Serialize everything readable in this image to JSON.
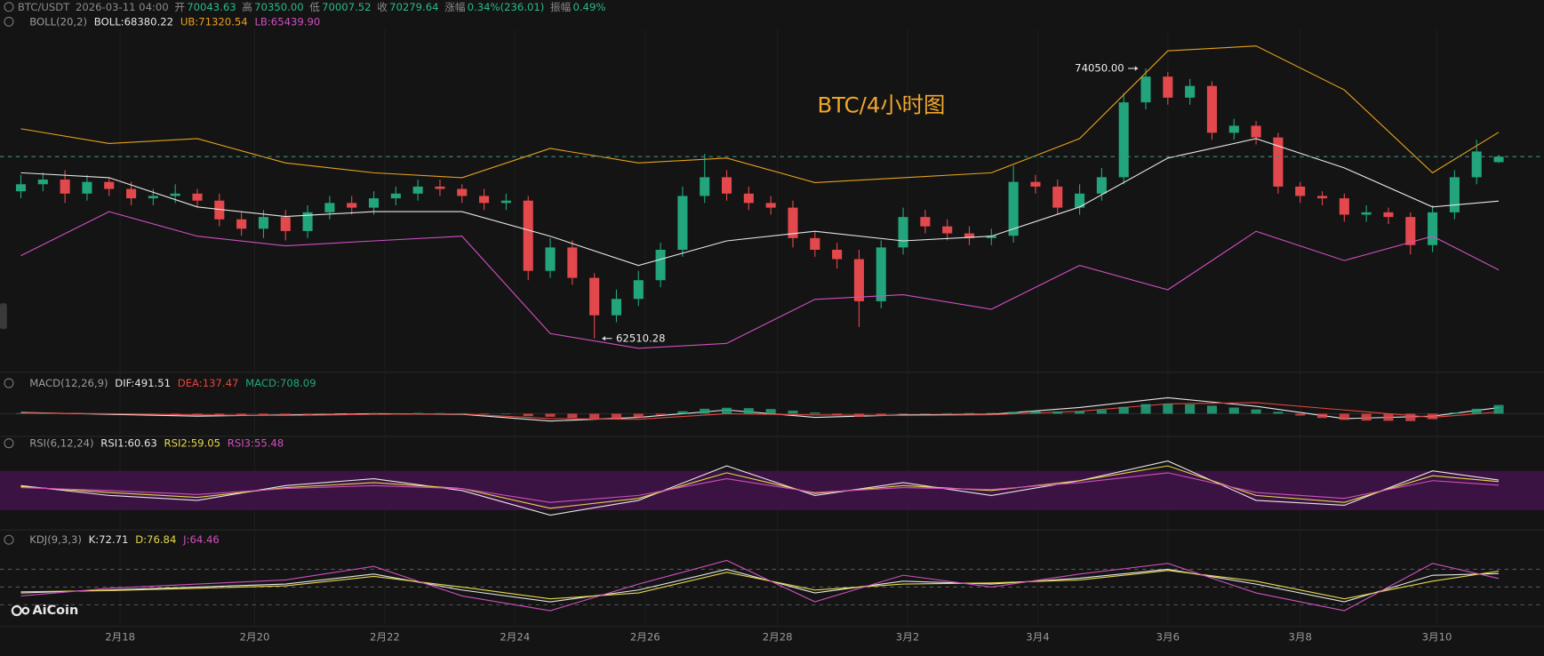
{
  "header": {
    "symbol": "BTC/USDT",
    "time": "2026-03-11 04:00",
    "fields": [
      {
        "label": "开",
        "value": "70043.63"
      },
      {
        "label": "高",
        "value": "70350.00"
      },
      {
        "label": "低",
        "value": "70007.52"
      },
      {
        "label": "收",
        "value": "70279.64"
      },
      {
        "label": "涨幅",
        "value": "0.34%(236.01)"
      },
      {
        "label": "振幅",
        "value": "0.49%"
      }
    ]
  },
  "watermark": "BTC/4小时图",
  "logo": "AiCoin",
  "chart_data": [
    {
      "type": "candlestick",
      "indicator": "BOLL(20,2)",
      "up_color": "#22a57c",
      "down_color": "#e2484c",
      "ylim": [
        61400,
        75500
      ],
      "open": [
        68800,
        69100,
        69300,
        68700,
        69200,
        68900,
        68500,
        68600,
        68700,
        68400,
        67600,
        67200,
        67700,
        67100,
        67900,
        68300,
        68100,
        68500,
        68700,
        69000,
        68900,
        68600,
        68300,
        68400,
        65400,
        66400,
        65100,
        63500,
        64200,
        65000,
        66300,
        68600,
        69400,
        68700,
        68300,
        68100,
        66800,
        66300,
        65900,
        64100,
        66400,
        67700,
        67300,
        67000,
        66800,
        66900,
        69200,
        69000,
        68100,
        68700,
        69400,
        72600,
        73700,
        72800,
        73300,
        71300,
        71600,
        71100,
        69000,
        68600,
        68500,
        67800,
        67900,
        67700,
        66500,
        67900,
        69400,
        70043.63
      ],
      "high": [
        69500,
        69600,
        69700,
        69500,
        69400,
        69200,
        68900,
        69100,
        68900,
        68700,
        67900,
        68000,
        68000,
        68200,
        68600,
        68600,
        68800,
        69000,
        69300,
        69300,
        69100,
        68900,
        68700,
        68600,
        66800,
        66700,
        65300,
        64600,
        65400,
        66600,
        69000,
        70400,
        69700,
        69000,
        68600,
        68400,
        67100,
        66600,
        66300,
        66700,
        68100,
        68000,
        67600,
        67300,
        67200,
        69900,
        69500,
        69300,
        69100,
        69800,
        73000,
        74050,
        73900,
        73600,
        73500,
        71900,
        71800,
        71300,
        69200,
        68800,
        68700,
        68200,
        68100,
        67900,
        68200,
        69700,
        71000,
        70350
      ],
      "low": [
        68500,
        68800,
        68300,
        68400,
        68600,
        68200,
        68200,
        68300,
        68100,
        67300,
        66900,
        66800,
        66700,
        66800,
        67600,
        67800,
        67800,
        68200,
        68400,
        68600,
        68300,
        68000,
        68000,
        65000,
        65100,
        64800,
        62510.28,
        63200,
        63900,
        64700,
        66000,
        68300,
        68400,
        68000,
        67800,
        66400,
        66000,
        65500,
        63000,
        63800,
        66100,
        67000,
        66700,
        66500,
        66500,
        66600,
        68700,
        67800,
        67800,
        68400,
        69100,
        72300,
        72500,
        72500,
        71000,
        71000,
        70800,
        68700,
        68300,
        68200,
        67500,
        67500,
        67400,
        66100,
        66200,
        67600,
        69100,
        70007.52
      ],
      "close": [
        69100,
        69300,
        68700,
        69200,
        68900,
        68500,
        68600,
        68700,
        68400,
        67600,
        67200,
        67700,
        67100,
        67900,
        68300,
        68100,
        68500,
        68700,
        69000,
        68900,
        68600,
        68300,
        68400,
        65400,
        66400,
        65100,
        63500,
        64200,
        65000,
        66300,
        68600,
        69400,
        68700,
        68300,
        68100,
        66800,
        66300,
        65900,
        64100,
        66400,
        67700,
        67300,
        67000,
        66800,
        66900,
        69200,
        69000,
        68100,
        68700,
        69400,
        72600,
        73700,
        72800,
        73300,
        71300,
        71600,
        71100,
        69000,
        68600,
        68500,
        67800,
        67900,
        67700,
        66500,
        67900,
        69400,
        70500,
        70279.64
      ],
      "sample_index": [
        0,
        4,
        8,
        12,
        16,
        20,
        24,
        28,
        32,
        36,
        40,
        44,
        48,
        52,
        56,
        60,
        64,
        67
      ],
      "series": [
        {
          "name": "BOLL:68380.22",
          "kind": "line",
          "color": "#e6e6e6",
          "values": [
            69590,
            69380,
            68130,
            67720,
            67930,
            67930,
            66880,
            65630,
            66680,
            67090,
            66680,
            66880,
            68130,
            70220,
            71050,
            69800,
            68130,
            68380.22
          ]
        },
        {
          "name": "UB:71320.54",
          "kind": "line",
          "color": "#e7a11c",
          "values": [
            71470,
            70840,
            71050,
            70010,
            69590,
            69380,
            70630,
            70010,
            70220,
            69170,
            69380,
            69590,
            71050,
            74800,
            75010,
            73130,
            69590,
            71320.54
          ]
        },
        {
          "name": "LB:65439.90",
          "kind": "line",
          "color": "#d04fbf",
          "values": [
            66050,
            67930,
            66880,
            66470,
            66680,
            66880,
            62720,
            62090,
            62300,
            64180,
            64380,
            63760,
            65630,
            64590,
            67090,
            65840,
            66880,
            65439.9
          ]
        }
      ],
      "high_annotation": {
        "value": 74050,
        "label": "74050.00"
      },
      "low_annotation": {
        "value": 62510.28,
        "label": "62510.28"
      },
      "xticks": [
        {
          "value": 4.5,
          "label": "2月18"
        },
        {
          "value": 10.6,
          "label": "2月20"
        },
        {
          "value": 16.5,
          "label": "2月22"
        },
        {
          "value": 22.4,
          "label": "2月24"
        },
        {
          "value": 28.3,
          "label": "2月26"
        },
        {
          "value": 34.3,
          "label": "2月28"
        },
        {
          "value": 40.2,
          "label": "3月2"
        },
        {
          "value": 46.1,
          "label": "3月4"
        },
        {
          "value": 52,
          "label": "3月6"
        },
        {
          "value": 58,
          "label": "3月8"
        },
        {
          "value": 64.2,
          "label": "3月10"
        }
      ]
    },
    {
      "type": "macd",
      "indicator": "MACD(12,26,9)",
      "ylim": [
        -2000,
        2000
      ],
      "up_color": "#22a57c",
      "down_color": "#e2484c",
      "series": [
        {
          "name": "DIF:491.51",
          "kind": "line",
          "color": "#e6e6e6",
          "values": [
            100,
            -50,
            -200,
            -100,
            0,
            -50,
            -600,
            -300,
            300,
            -300,
            -100,
            -50,
            500,
            1300,
            600,
            -400,
            -200,
            491.51
          ]
        },
        {
          "name": "DEA:137.47",
          "kind": "line",
          "color": "#e0463e",
          "values": [
            50,
            0,
            -100,
            -150,
            -50,
            -20,
            -400,
            -450,
            0,
            -100,
            -150,
            -80,
            200,
            800,
            900,
            300,
            -300,
            137.47
          ]
        },
        {
          "name": "MACD:708.09",
          "kind": "histogram",
          "color": "#22a57c",
          "values": [
            40,
            30,
            -20,
            10,
            -10,
            -40,
            -50,
            -60,
            -70,
            -100,
            -150,
            -120,
            -140,
            -80,
            -30,
            -10,
            20,
            40,
            60,
            50,
            30,
            10,
            0,
            -200,
            -250,
            -350,
            -480,
            -450,
            -300,
            -100,
            200,
            400,
            480,
            450,
            380,
            250,
            100,
            -80,
            -250,
            -150,
            -50,
            20,
            40,
            50,
            60,
            150,
            200,
            180,
            190,
            300,
            550,
            780,
            800,
            760,
            650,
            500,
            350,
            150,
            -150,
            -350,
            -500,
            -560,
            -580,
            -600,
            -450,
            100,
            400,
            708.09
          ]
        }
      ]
    },
    {
      "type": "rsi",
      "indicator": "RSI(6,12,24)",
      "ylim": [
        0,
        100
      ],
      "band": [
        30,
        70
      ],
      "band_color": "#3b1342",
      "series": [
        {
          "name": "RSI1:60.63",
          "kind": "line",
          "color": "#e6e6e6",
          "values": [
            55,
            45,
            40,
            55,
            62,
            50,
            25,
            40,
            75,
            45,
            58,
            45,
            60,
            80,
            40,
            35,
            70,
            60.63
          ]
        },
        {
          "name": "RSI2:59.05",
          "kind": "line",
          "color": "#e6d84a",
          "values": [
            54,
            48,
            43,
            53,
            58,
            52,
            32,
            42,
            68,
            47,
            55,
            50,
            60,
            75,
            45,
            38,
            65,
            59.05
          ]
        },
        {
          "name": "RSI3:55.48",
          "kind": "line",
          "color": "#d04fbf",
          "values": [
            53,
            50,
            46,
            52,
            55,
            52,
            38,
            45,
            62,
            48,
            53,
            51,
            58,
            68,
            48,
            42,
            60,
            55.48
          ]
        }
      ]
    },
    {
      "type": "kdj",
      "indicator": "KDJ(9,3,3)",
      "ylim": [
        -15,
        110
      ],
      "levels": [
        20,
        50,
        80
      ],
      "series": [
        {
          "name": "K:72.71",
          "kind": "line",
          "color": "#e6e6e6",
          "values": [
            40,
            45,
            50,
            55,
            72,
            45,
            25,
            45,
            80,
            40,
            60,
            55,
            65,
            80,
            55,
            25,
            70,
            72.71
          ]
        },
        {
          "name": "D:76.84",
          "kind": "line",
          "color": "#e6d84a",
          "values": [
            42,
            44,
            48,
            52,
            68,
            50,
            30,
            40,
            75,
            45,
            55,
            57,
            62,
            78,
            60,
            30,
            60,
            76.84
          ]
        },
        {
          "name": "J:64.46",
          "kind": "line",
          "color": "#d04fbf",
          "values": [
            35,
            48,
            55,
            62,
            85,
            35,
            10,
            55,
            95,
            25,
            70,
            50,
            72,
            90,
            40,
            10,
            90,
            64.46
          ]
        }
      ]
    }
  ]
}
